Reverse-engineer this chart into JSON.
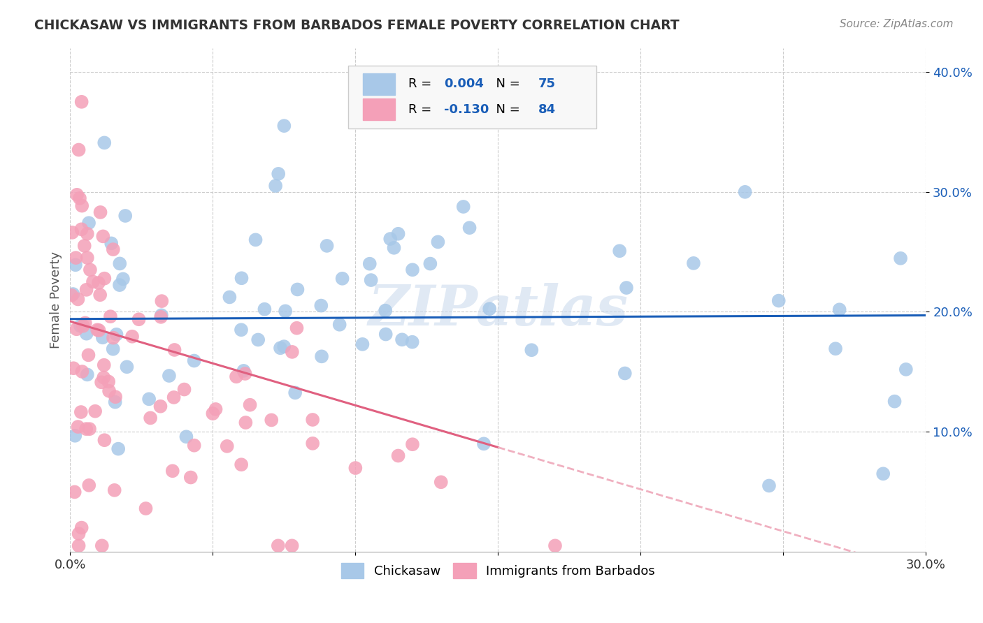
{
  "title": "CHICKASAW VS IMMIGRANTS FROM BARBADOS FEMALE POVERTY CORRELATION CHART",
  "source": "Source: ZipAtlas.com",
  "ylabel": "Female Poverty",
  "xlim": [
    0.0,
    0.3
  ],
  "ylim": [
    0.0,
    0.42
  ],
  "chickasaw_color": "#a8c8e8",
  "barbados_color": "#f4a0b8",
  "chickasaw_R": 0.004,
  "chickasaw_N": 75,
  "barbados_R": -0.13,
  "barbados_N": 84,
  "chickasaw_line_color": "#1a5eb8",
  "barbados_line_solid_color": "#e06080",
  "barbados_line_dash_color": "#f0b0c0",
  "watermark": "ZIPatlas",
  "background_color": "#ffffff",
  "legend_R1": "R = ",
  "legend_V1": "0.004",
  "legend_N1": "N = ",
  "legend_NV1": "75",
  "legend_R2": "R = ",
  "legend_V2": "-0.130",
  "legend_N2": "N = ",
  "legend_NV2": "84",
  "legend_text_color": "#000000",
  "legend_num_color": "#1a5eb8",
  "axis_tick_color": "#1a5eb8",
  "title_color": "#333333",
  "source_color": "#888888"
}
